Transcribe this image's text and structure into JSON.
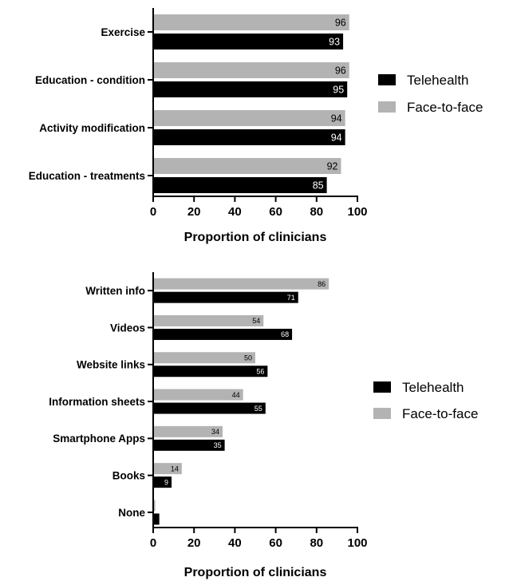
{
  "chart_data": [
    {
      "type": "bar",
      "orientation": "horizontal",
      "categories": [
        "Exercise",
        "Education - condition",
        "Activity modification",
        "Education - treatments"
      ],
      "series": [
        {
          "name": "Face-to-face",
          "color": "#b3b3b3",
          "values": [
            96,
            96,
            94,
            92
          ]
        },
        {
          "name": "Telehealth",
          "color": "#000000",
          "values": [
            93,
            95,
            94,
            85
          ]
        }
      ],
      "xlabel": "Proportion of clinicians",
      "ylabel": "",
      "xlim": [
        0,
        100
      ],
      "xticks": [
        "0",
        "20",
        "40",
        "60",
        "80",
        "100"
      ],
      "legend": {
        "position": "right",
        "entries": [
          "Telehealth",
          "Face-to-face"
        ]
      },
      "grid": false
    },
    {
      "type": "bar",
      "orientation": "horizontal",
      "categories": [
        "Written info",
        "Videos",
        "Website links",
        "Information sheets",
        "Smartphone Apps",
        "Books",
        "None"
      ],
      "series": [
        {
          "name": "Face-to-face",
          "color": "#b3b3b3",
          "values": [
            86,
            54,
            50,
            44,
            34,
            14,
            1
          ]
        },
        {
          "name": "Telehealth",
          "color": "#000000",
          "values": [
            71,
            68,
            56,
            55,
            35,
            9,
            3
          ]
        }
      ],
      "data_labels": {
        "Face-to-face": [
          "86",
          "54",
          "50",
          "44",
          "34",
          "14",
          ""
        ],
        "Telehealth": [
          "71",
          "68",
          "56",
          "55",
          "35",
          "9",
          ""
        ]
      },
      "xlabel": "Proportion of clinicians",
      "ylabel": "",
      "xlim": [
        0,
        100
      ],
      "xticks": [
        "0",
        "20",
        "40",
        "60",
        "80",
        "100"
      ],
      "legend": {
        "position": "right",
        "entries": [
          "Telehealth",
          "Face-to-face"
        ]
      },
      "grid": false
    }
  ]
}
